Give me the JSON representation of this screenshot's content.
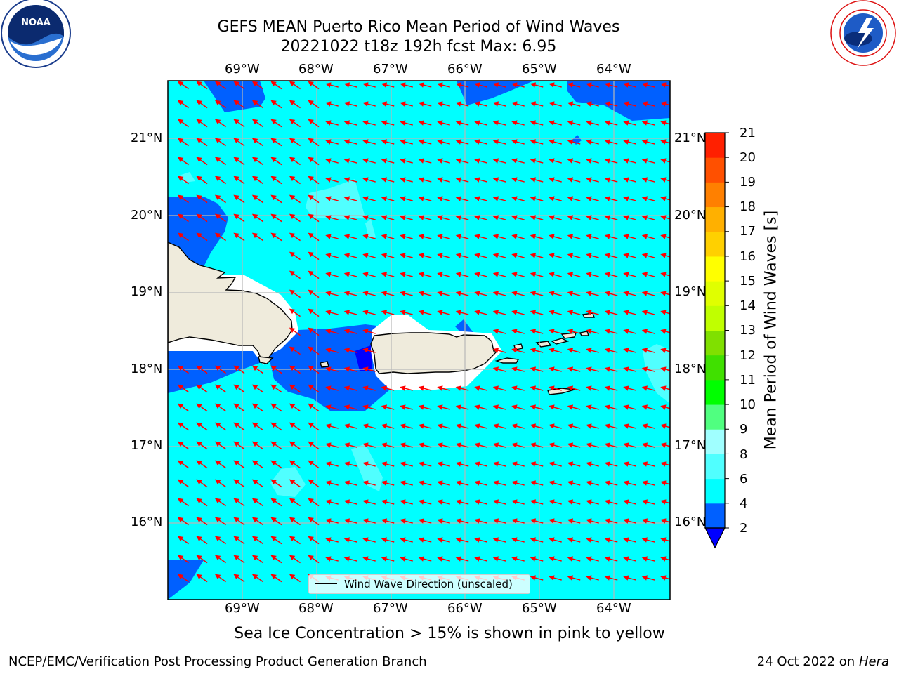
{
  "header": {
    "title_line1": "GEFS MEAN Puerto Rico Mean Period of Wind Waves",
    "title_line2": "20221022 t18z 192h fcst   Max: 6.95"
  },
  "logos": {
    "left": "noaa-logo",
    "right": "nws-logo"
  },
  "map": {
    "lon_labels": [
      "69°W",
      "68°W",
      "67°W",
      "66°W",
      "65°W",
      "64°W"
    ],
    "lat_labels": [
      "21°N",
      "20°N",
      "19°N",
      "18°N",
      "17°N",
      "16°N"
    ],
    "arrow_color": "#ff0000",
    "dominant_fill": "#00ffff",
    "land_color": "#efebdc"
  },
  "legend": {
    "label": "Wind Wave Direction (unscaled)"
  },
  "colorbar": {
    "title": "Mean Period of Wind Waves [s]",
    "ticks": [
      "2",
      "4",
      "6",
      "8",
      "9",
      "10",
      "11",
      "12",
      "13",
      "14",
      "15",
      "16",
      "17",
      "18",
      "19",
      "20",
      "21"
    ],
    "colors": [
      "#0060ff",
      "#00ffff",
      "#50ffff",
      "#a0ffff",
      "#50ff80",
      "#00ff00",
      "#40e000",
      "#80e000",
      "#c0ff00",
      "#e0ff00",
      "#ffff00",
      "#ffd000",
      "#ffb000",
      "#ff8000",
      "#ff5000",
      "#ff2000"
    ],
    "under_color": "#0000ff"
  },
  "subtitle": "Sea Ice Concentration > 15% is shown in pink to yellow",
  "footer": {
    "left": "NCEP/EMC/Verification Post Processing Product Generation Branch",
    "right_prefix": "24 Oct 2022 on",
    "right_host": "Hera"
  }
}
